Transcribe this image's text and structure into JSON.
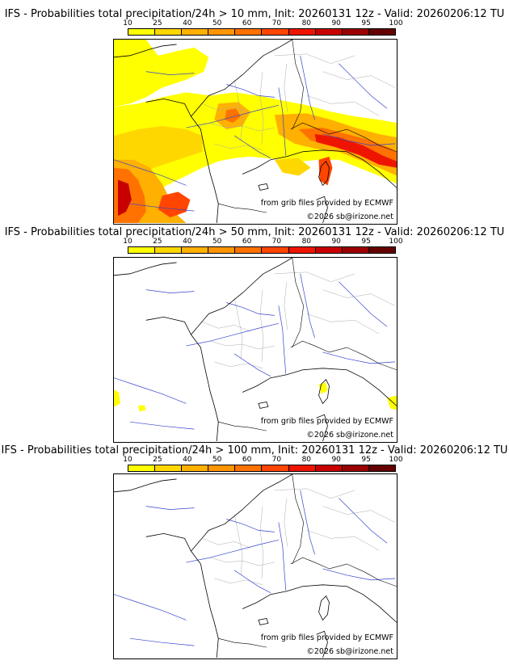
{
  "colorbar": {
    "ticks": [
      "10",
      "25",
      "40",
      "50",
      "60",
      "70",
      "80",
      "90",
      "95",
      "100"
    ],
    "colors": [
      "#ffff00",
      "#ffd700",
      "#ffb000",
      "#ff9500",
      "#ff7200",
      "#ff4500",
      "#ee1500",
      "#c80000",
      "#9a0000",
      "#640000"
    ]
  },
  "panels": [
    {
      "title": "IFS - Probabilities total precipitation/24h > 10 mm, Init: 20260131 12z - Valid: 20260206:12 TU",
      "source": "from grib files provided by ECMWF",
      "copyright": "©2026 sb@irizone.net"
    },
    {
      "title": "IFS - Probabilities total precipitation/24h > 50 mm, Init: 20260131 12z - Valid: 20260206:12 TU",
      "source": "from grib files provided by ECMWF",
      "copyright": "©2026 sb@irizone.net"
    },
    {
      "title": "IFS - Probabilities total precipitation/24h > 100 mm, Init: 20260131 12z - Valid: 20260206:12 TU",
      "source": "from grib files provided by ECMWF",
      "copyright": "©2026 sb@irizone.net"
    }
  ]
}
